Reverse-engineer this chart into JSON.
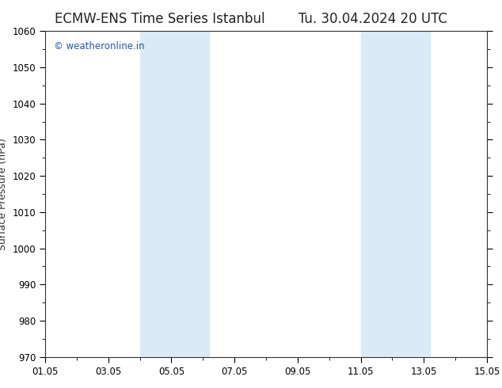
{
  "title": "ECMW-ENS Time Series Istanbul",
  "title2": "Tu. 30.04.2024 20 UTC",
  "ylabel": "Surface Pressure (hPa)",
  "ylim": [
    970,
    1060
  ],
  "yticks": [
    970,
    980,
    990,
    1000,
    1010,
    1020,
    1030,
    1040,
    1050,
    1060
  ],
  "xlim": [
    1,
    15
  ],
  "xtick_labels": [
    "01.05",
    "03.05",
    "05.05",
    "07.05",
    "09.05",
    "11.05",
    "13.05",
    "15.05"
  ],
  "xtick_positions": [
    1,
    3,
    5,
    7,
    9,
    11,
    13,
    15
  ],
  "shaded_regions": [
    {
      "xmin": 4.0,
      "xmax": 5.1,
      "color": "#dbeaf7"
    },
    {
      "xmin": 5.1,
      "xmax": 6.2,
      "color": "#dbeaf7"
    },
    {
      "xmin": 11.0,
      "xmax": 12.1,
      "color": "#dbeaf7"
    },
    {
      "xmin": 12.1,
      "xmax": 13.2,
      "color": "#dbeaf7"
    }
  ],
  "watermark_text": "© weatheronline.in",
  "watermark_color": "#2255bb",
  "watermark_fontsize": 8.5,
  "background_color": "#ffffff",
  "title_fontsize": 12,
  "title_color": "#222222",
  "axis_label_fontsize": 9,
  "tick_fontsize": 8.5,
  "minor_xtick_positions": [
    2,
    4,
    6,
    8,
    10,
    12,
    14
  ],
  "minor_ytick_positions": [
    975,
    985,
    995,
    1005,
    1015,
    1025,
    1035,
    1045,
    1055
  ]
}
